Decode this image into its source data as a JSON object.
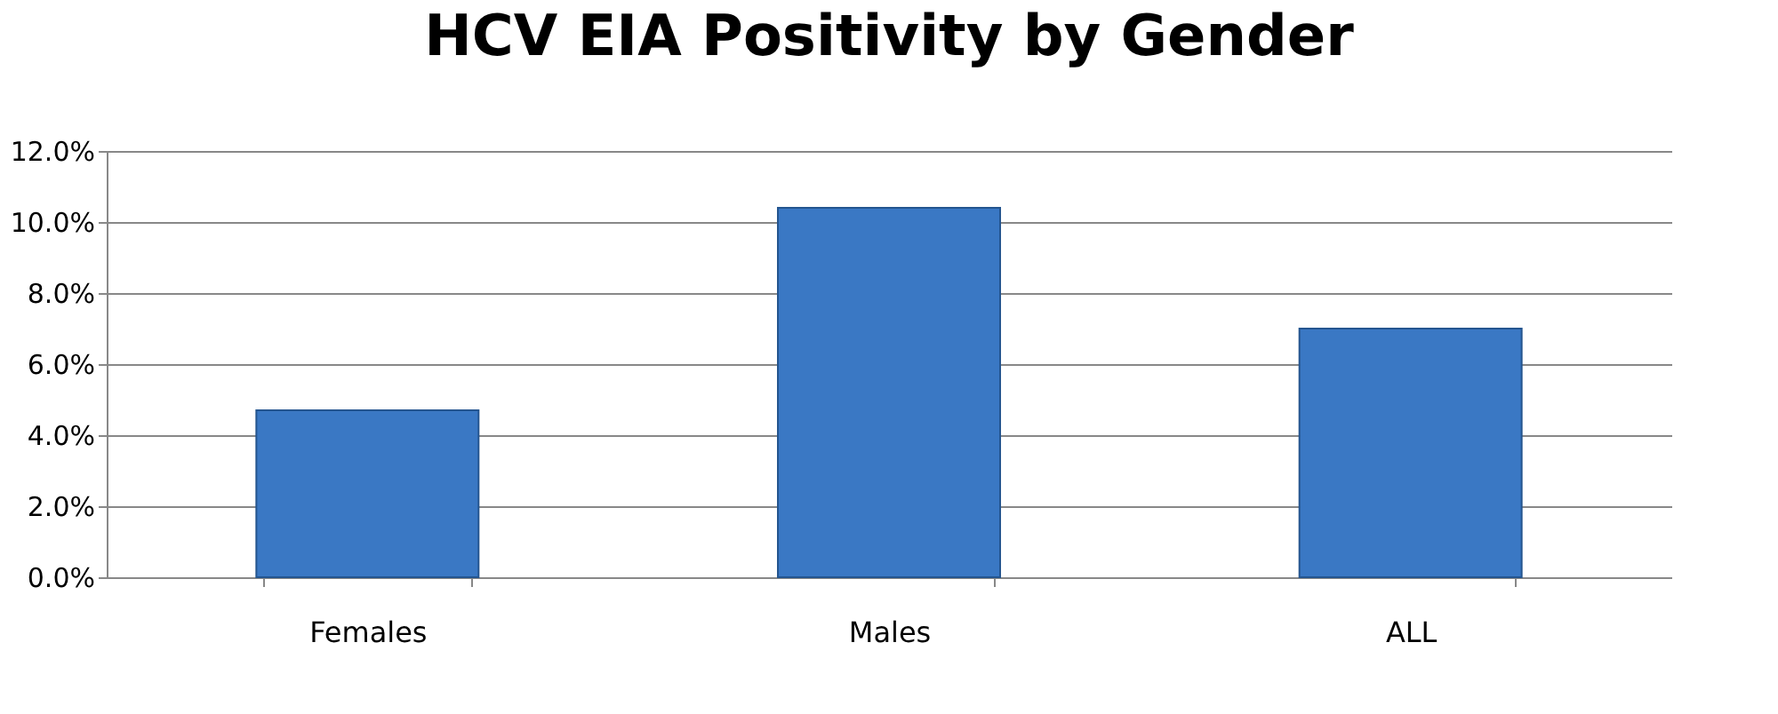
{
  "chart_data": {
    "type": "bar",
    "title": "HCV EIA Positivity by Gender",
    "categories": [
      "Females",
      "Males",
      "ALL"
    ],
    "values": [
      4.7,
      10.4,
      7.0
    ],
    "color": "#3a78c4",
    "ylim": [
      0,
      12
    ],
    "yticks": [
      {
        "value": 0,
        "label": "0.0%"
      },
      {
        "value": 2,
        "label": "2.0%"
      },
      {
        "value": 4,
        "label": "4.0%"
      },
      {
        "value": 6,
        "label": "6.0%"
      },
      {
        "value": 8,
        "label": "8.0%"
      },
      {
        "value": 10,
        "label": "10.0%"
      },
      {
        "value": 12,
        "label": "12.0%"
      }
    ],
    "grid": "y"
  }
}
